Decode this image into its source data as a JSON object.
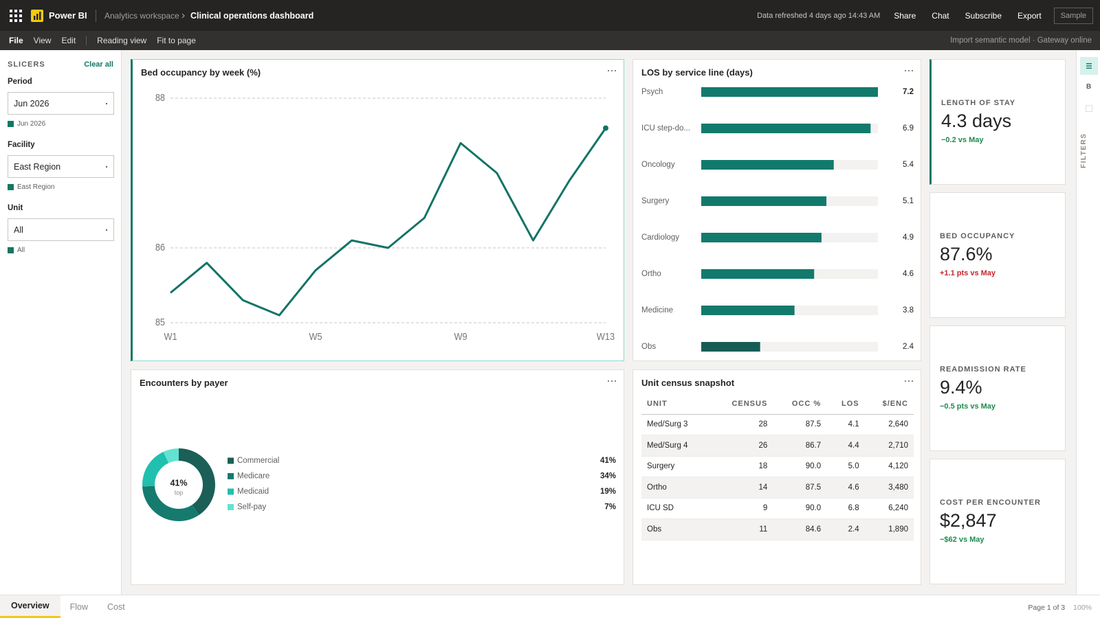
{
  "topbar": {
    "app": "Power BI",
    "workspace": "Analytics workspace",
    "report": "Clinical operations dashboard",
    "refresh": "Data refreshed 4 days ago 14:43 AM",
    "actions": [
      "Share",
      "Chat",
      "Subscribe",
      "Export"
    ],
    "badge": "Sample"
  },
  "menubar": {
    "items": [
      "File",
      "View",
      "Edit"
    ],
    "view_items": [
      "Reading view",
      "Fit to page"
    ],
    "status": "Import semantic model · Gateway online"
  },
  "slicers": {
    "title": "SLICERS",
    "clear": "Clear all",
    "items": [
      {
        "label": "Period",
        "value": "Jun 2026",
        "chip": "Jun 2026"
      },
      {
        "label": "Facility",
        "value": "East Region",
        "chip": "East Region"
      },
      {
        "label": "Unit",
        "value": "All",
        "chip": "All"
      }
    ]
  },
  "chart_data": [
    {
      "type": "line",
      "title": "Bed occupancy by week (%)",
      "categories": [
        "W1",
        null,
        null,
        null,
        "W5",
        null,
        null,
        null,
        "W9",
        null,
        null,
        null,
        "W13"
      ],
      "values": [
        85.4,
        85.8,
        85.3,
        85.1,
        85.7,
        86.1,
        86.0,
        86.4,
        87.4,
        87.0,
        86.1,
        86.9,
        87.6
      ],
      "color": "#137366",
      "ylim": [
        85,
        88
      ],
      "yticks": [
        85,
        86,
        88
      ],
      "grid": true
    },
    {
      "type": "hbar",
      "title": "LOS by service line (days)",
      "categories": [
        "Psych",
        "ICU step-do...",
        "Oncology",
        "Surgery",
        "Cardiology",
        "Ortho",
        "Medicine",
        "Obs"
      ],
      "values": [
        7.2,
        6.9,
        5.4,
        5.1,
        4.9,
        4.6,
        3.8,
        2.4
      ],
      "colors": [
        "#127a6c",
        "#127a6c",
        "#127a6c",
        "#127a6c",
        "#127a6c",
        "#127a6c",
        "#127a6c",
        "#175c54"
      ],
      "xlim": [
        0,
        7.2
      ]
    },
    {
      "type": "donut",
      "title": "Encounters by payer",
      "categories": [
        "Commercial",
        "Medicare",
        "Medicaid",
        "Self-pay"
      ],
      "values": [
        41,
        34,
        19,
        7
      ],
      "value_labels": [
        "41%",
        "34%",
        "19%",
        "7%"
      ],
      "colors": [
        "#1b5f57",
        "#167a6f",
        "#20bfae",
        "#62e3d1"
      ],
      "center_label": "41%",
      "center_sublabel": "top"
    }
  ],
  "table": {
    "title": "Unit census snapshot",
    "columns": [
      "UNIT",
      "CENSUS",
      "OCC %",
      "LOS",
      "$/ENC"
    ],
    "rows": [
      [
        "Med/Surg 3",
        "28",
        "87.5",
        "4.1",
        "2,640"
      ],
      [
        "Med/Surg 4",
        "26",
        "86.7",
        "4.4",
        "2,710"
      ],
      [
        "Surgery",
        "18",
        "90.0",
        "5.0",
        "4,120"
      ],
      [
        "Ortho",
        "14",
        "87.5",
        "4.6",
        "3,480"
      ],
      [
        "ICU SD",
        "9",
        "90.0",
        "6.8",
        "6,240"
      ],
      [
        "Obs",
        "11",
        "84.6",
        "2.4",
        "1,890"
      ]
    ]
  },
  "kpis": [
    {
      "label": "LENGTH OF STAY",
      "value": "4.3 days",
      "delta": "−0.2 vs May",
      "delta_color": "#1e8a4c"
    },
    {
      "label": "BED OCCUPANCY",
      "value": "87.6%",
      "delta": "+1.1 pts vs May",
      "delta_color": "#c4262e"
    },
    {
      "label": "READMISSION RATE",
      "value": "9.4%",
      "delta": "−0.5 pts vs May",
      "delta_color": "#1e8a4c"
    },
    {
      "label": "COST PER ENCOUNTER",
      "value": "$2,847",
      "delta": "−$62 vs May",
      "delta_color": "#1e8a4c"
    }
  ],
  "rail": {
    "letter": "B",
    "label": "FILTERS"
  },
  "tabs": {
    "items": [
      "Overview",
      "Flow",
      "Cost"
    ],
    "page": "Page 1 of 3",
    "zoom": "100%"
  }
}
